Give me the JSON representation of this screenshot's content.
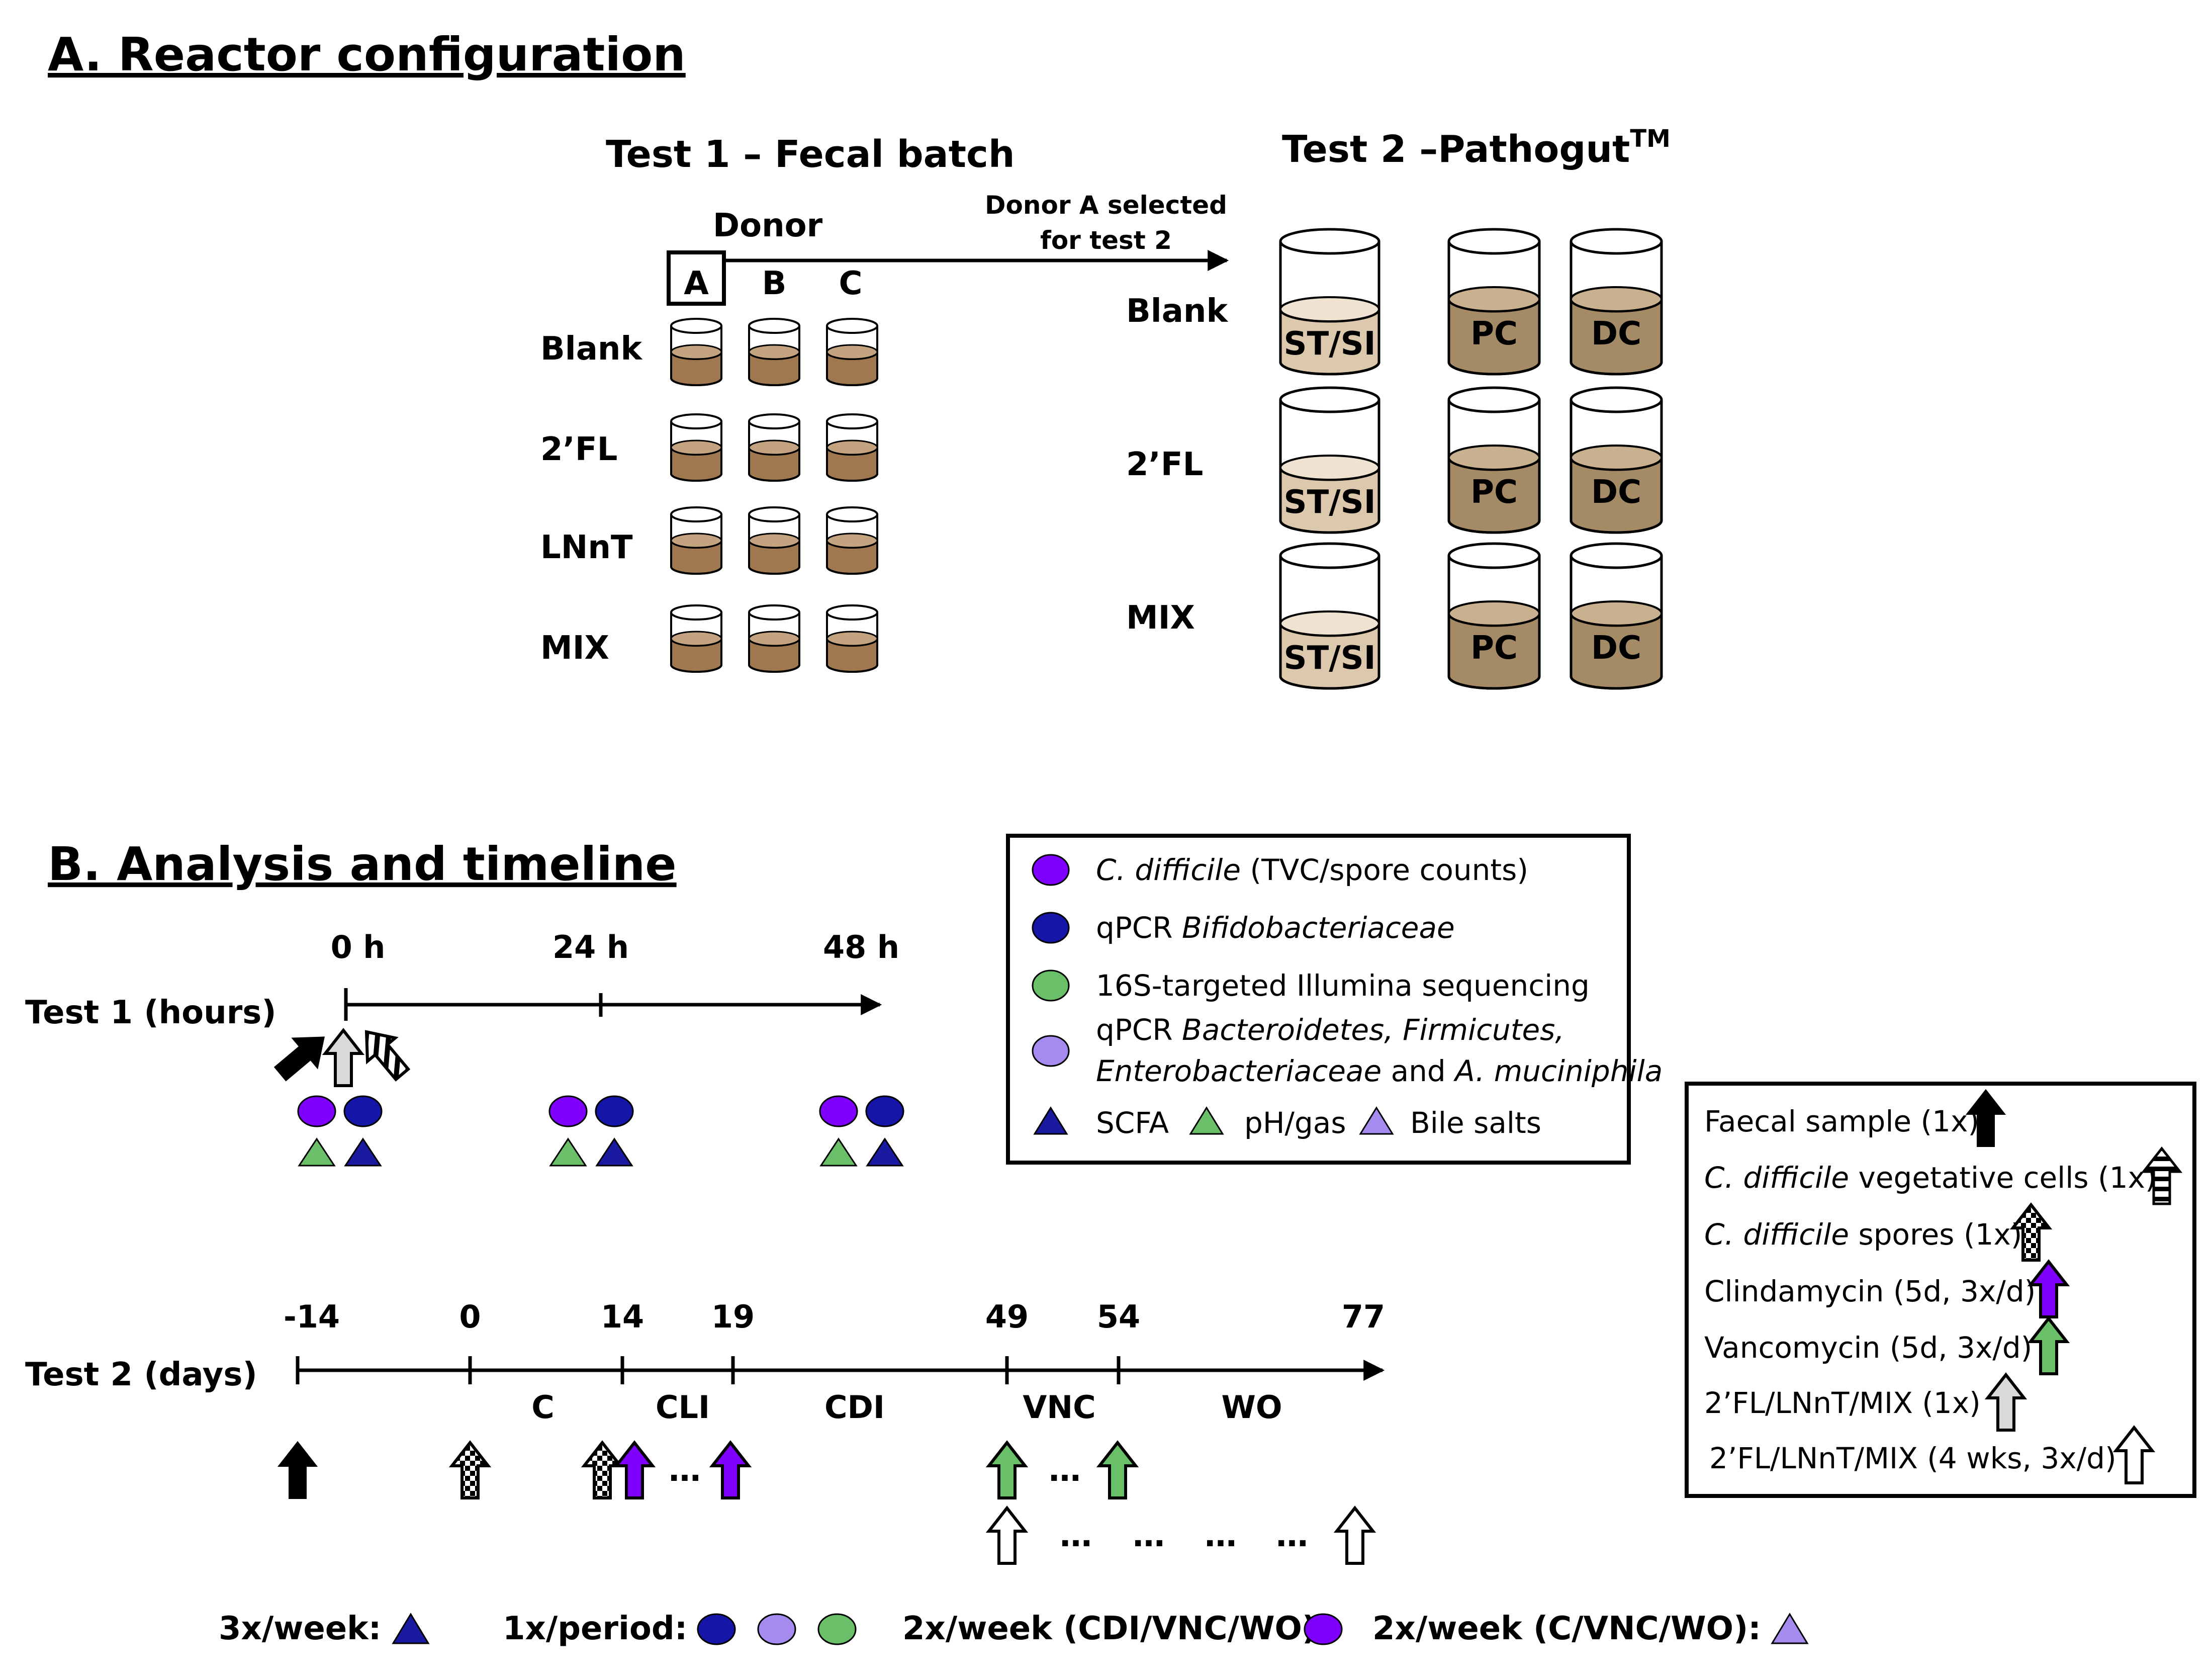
{
  "section_a": {
    "title": "A. Reactor configuration",
    "test1": {
      "title": "Test 1 – Fecal batch",
      "donor_label": "Donor",
      "donors": [
        "A",
        "B",
        "C"
      ],
      "rows": [
        "Blank",
        "2’FL",
        "LNnT",
        "MIX"
      ],
      "arrow_note_line1": "Donor A selected",
      "arrow_note_line2": "for test 2"
    },
    "test2": {
      "title": "Test 2 –Pathogut",
      "title_sup": "TM",
      "rows": [
        "Blank",
        "2’FL",
        "MIX"
      ],
      "vessels": [
        "ST/SI",
        "PC",
        "DC"
      ]
    }
  },
  "section_b": {
    "title": "B. Analysis and timeline",
    "test1": {
      "label": "Test 1 (hours)",
      "ticks": [
        "0 h",
        "24 h",
        "48 h"
      ]
    },
    "test2": {
      "label": "Test 2 (days)",
      "ticks": [
        "-14",
        "0",
        "14",
        "19",
        "49",
        "54",
        "77"
      ],
      "periods": [
        "C",
        "CLI",
        "CDI",
        "VNC",
        "WO"
      ],
      "ellipsis": "…"
    },
    "legend_analysis": {
      "items": [
        {
          "italic": "C. difficile",
          "text": " (TVC/spore counts)"
        },
        {
          "text": "qPCR ",
          "italic": "Bifidobacteriaceae"
        },
        {
          "text": "16S-targeted Illumina sequencing"
        },
        {
          "text": "qPCR ",
          "italic": "Bacteroidetes, Firmicutes,",
          "line2_italic": "Enterobacteriaceae",
          "line2_text": " and ",
          "line2_italic2": "A. muciniphila"
        }
      ],
      "shapes": [
        "SCFA",
        "pH/gas",
        "Bile salts"
      ]
    },
    "legend_arrows": {
      "items": [
        {
          "text": "Faecal sample (1x)"
        },
        {
          "italic": "C. difficile",
          "text": " vegetative cells (1x)"
        },
        {
          "italic": "C. difficile",
          "text": " spores (1x)"
        },
        {
          "text": "Clindamycin (5d, 3x/d)"
        },
        {
          "text": "Vancomycin (5d, 3x/d)"
        },
        {
          "text": "2’FL/LNnT/MIX (1x)"
        },
        {
          "text": "2’FL/LNnT/MIX (4 wks, 3x/d)"
        }
      ]
    },
    "frequency_row": [
      "3x/week:",
      "1x/period:",
      "2x/week (CDI/VNC/WO):",
      "2x/week (C/VNC/WO):"
    ]
  },
  "colors": {
    "cdiff_purple": "#7f00ff",
    "bifido_navy": "#1515a8",
    "illumina_green": "#6abf69",
    "qpcr_lavender": "#a58bf0",
    "scfa_triangle": "#1a1aa0",
    "ph_triangle": "#6abf69",
    "bile_triangle": "#a58bf0",
    "batch_liquid": "#a07850",
    "reactor_liquid_dark": "#a58a66",
    "reactor_liquid_light": "#dcc8ac"
  }
}
